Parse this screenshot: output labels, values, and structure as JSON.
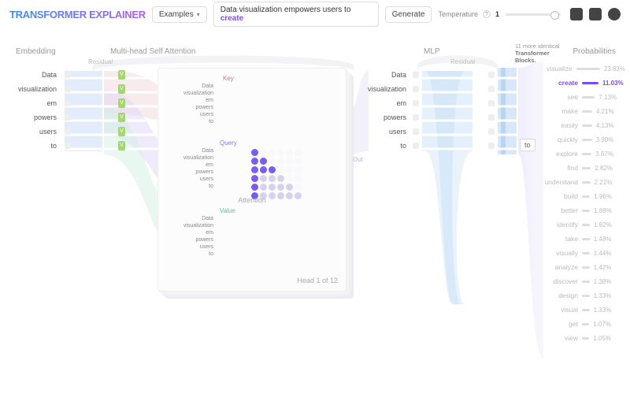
{
  "header": {
    "logo": "Transformer Explainer",
    "examples_btn": "Examples",
    "input_prefix": "Data visualization empowers users to ",
    "input_highlight": "create",
    "generate_btn": "Generate",
    "temperature_label": "Temperature",
    "temperature_value": "1"
  },
  "sections": {
    "embedding": "Embedding",
    "msa": "Multi-head Self Attention",
    "residual_left": "Residual",
    "mlp": "MLP",
    "residual_right": "Residual",
    "blocks_note_line1": "11 more identical",
    "blocks_note_line2": "Transformer",
    "blocks_note_line3": "Blocks.",
    "probabilities": "Probabilities"
  },
  "tokens": [
    "Data",
    "visualization",
    "em",
    "powers",
    "users",
    "to"
  ],
  "predicted_token": "to",
  "attention": {
    "key_label": "Key",
    "query_label": "Query",
    "value_label": "Value",
    "out_label": "Out",
    "title": "Attention",
    "head_text": "Head 1 of 12",
    "grid_rows": 6,
    "grid_cols": 6,
    "strong_cells": [
      [
        0,
        0
      ],
      [
        1,
        0
      ],
      [
        2,
        0
      ],
      [
        3,
        0
      ],
      [
        4,
        0
      ],
      [
        5,
        0
      ],
      [
        1,
        1
      ],
      [
        2,
        1
      ],
      [
        2,
        2
      ]
    ],
    "colors": {
      "key": "#d99aa4",
      "query": "#9a8cf0",
      "value": "#7fd0b0",
      "grid_faint": "#e8e8ef",
      "grid_strong": "#7a5cf0"
    }
  },
  "flow_colors": {
    "embedding_band": "#cfe0f7",
    "key_band": "#f2d7dc",
    "query_band": "#e0d8f7",
    "value_band": "#d2efe2",
    "mlp_band": "#cde3f7",
    "to_prob": "#d8d3f5",
    "residual_band": "#f0f0f3",
    "vlabel": "#a8d478"
  },
  "probabilities": [
    {
      "word": "visualize",
      "pct": 23.83,
      "hl": false
    },
    {
      "word": "create",
      "pct": 11.03,
      "hl": true
    },
    {
      "word": "see",
      "pct": 7.13,
      "hl": false
    },
    {
      "word": "make",
      "pct": 4.21,
      "hl": false
    },
    {
      "word": "easily",
      "pct": 4.13,
      "hl": false
    },
    {
      "word": "quickly",
      "pct": 3.9,
      "hl": false
    },
    {
      "word": "explore",
      "pct": 3.67,
      "hl": false
    },
    {
      "word": "find",
      "pct": 2.82,
      "hl": false
    },
    {
      "word": "understand",
      "pct": 2.21,
      "hl": false
    },
    {
      "word": "build",
      "pct": 1.96,
      "hl": false
    },
    {
      "word": "better",
      "pct": 1.88,
      "hl": false
    },
    {
      "word": "identify",
      "pct": 1.82,
      "hl": false
    },
    {
      "word": "take",
      "pct": 1.48,
      "hl": false
    },
    {
      "word": "visually",
      "pct": 1.44,
      "hl": false
    },
    {
      "word": "analyze",
      "pct": 1.42,
      "hl": false
    },
    {
      "word": "discover",
      "pct": 1.38,
      "hl": false
    },
    {
      "word": "design",
      "pct": 1.33,
      "hl": false
    },
    {
      "word": "visual",
      "pct": 1.33,
      "hl": false
    },
    {
      "word": "get",
      "pct": 1.07,
      "hl": false
    },
    {
      "word": "view",
      "pct": 1.05,
      "hl": false
    }
  ],
  "style": {
    "hl_color": "#7a4cf0",
    "faint_text": "#bbbbbb",
    "bar_faint": "#dddddd"
  }
}
